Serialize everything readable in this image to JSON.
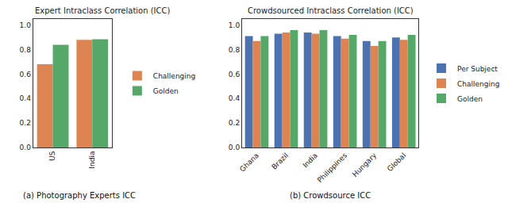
{
  "chart_data": [
    {
      "type": "bar",
      "title": "Expert Intraclass Correlation (ICC)",
      "caption": "(a) Photography Experts ICC",
      "categories": [
        "US",
        "India"
      ],
      "series": [
        {
          "name": "Challenging",
          "color": "#dd8452",
          "values": [
            0.68,
            0.88
          ]
        },
        {
          "name": "Golden",
          "color": "#55a868",
          "values": [
            0.84,
            0.885
          ]
        }
      ],
      "ylim": [
        0,
        1.05
      ],
      "yticks": [
        {
          "value": 0,
          "label": "0.0"
        },
        {
          "value": 0.2,
          "label": "0.2"
        },
        {
          "value": 0.4,
          "label": "0.4"
        },
        {
          "value": 0.6,
          "label": "0.6"
        },
        {
          "value": 0.8,
          "label": "0.8"
        },
        {
          "value": 1,
          "label": "1.0"
        }
      ],
      "grid": false,
      "legend": "right"
    },
    {
      "type": "bar",
      "title": "Crowdsourced Intraclass Correlation (ICC)",
      "caption": "(b) Crowdsource ICC",
      "categories": [
        "Ghana",
        "Brazil",
        "India",
        "Philippines",
        "Hungary",
        "Global"
      ],
      "series": [
        {
          "name": "Per Subject",
          "color": "#4c72b0",
          "values": [
            0.91,
            0.93,
            0.94,
            0.91,
            0.87,
            0.9
          ]
        },
        {
          "name": "Challenging",
          "color": "#dd8452",
          "values": [
            0.87,
            0.94,
            0.93,
            0.89,
            0.83,
            0.88
          ]
        },
        {
          "name": "Golden",
          "color": "#55a868",
          "values": [
            0.91,
            0.96,
            0.96,
            0.92,
            0.87,
            0.92
          ]
        }
      ],
      "ylim": [
        0,
        1.05
      ],
      "yticks": [
        {
          "value": 0,
          "label": "0.0"
        },
        {
          "value": 0.2,
          "label": "0.2"
        },
        {
          "value": 0.4,
          "label": "0.4"
        },
        {
          "value": 0.6,
          "label": "0.6"
        },
        {
          "value": 0.8,
          "label": "0.8"
        },
        {
          "value": 1,
          "label": "1.0"
        }
      ],
      "grid": false,
      "legend": "right"
    }
  ]
}
